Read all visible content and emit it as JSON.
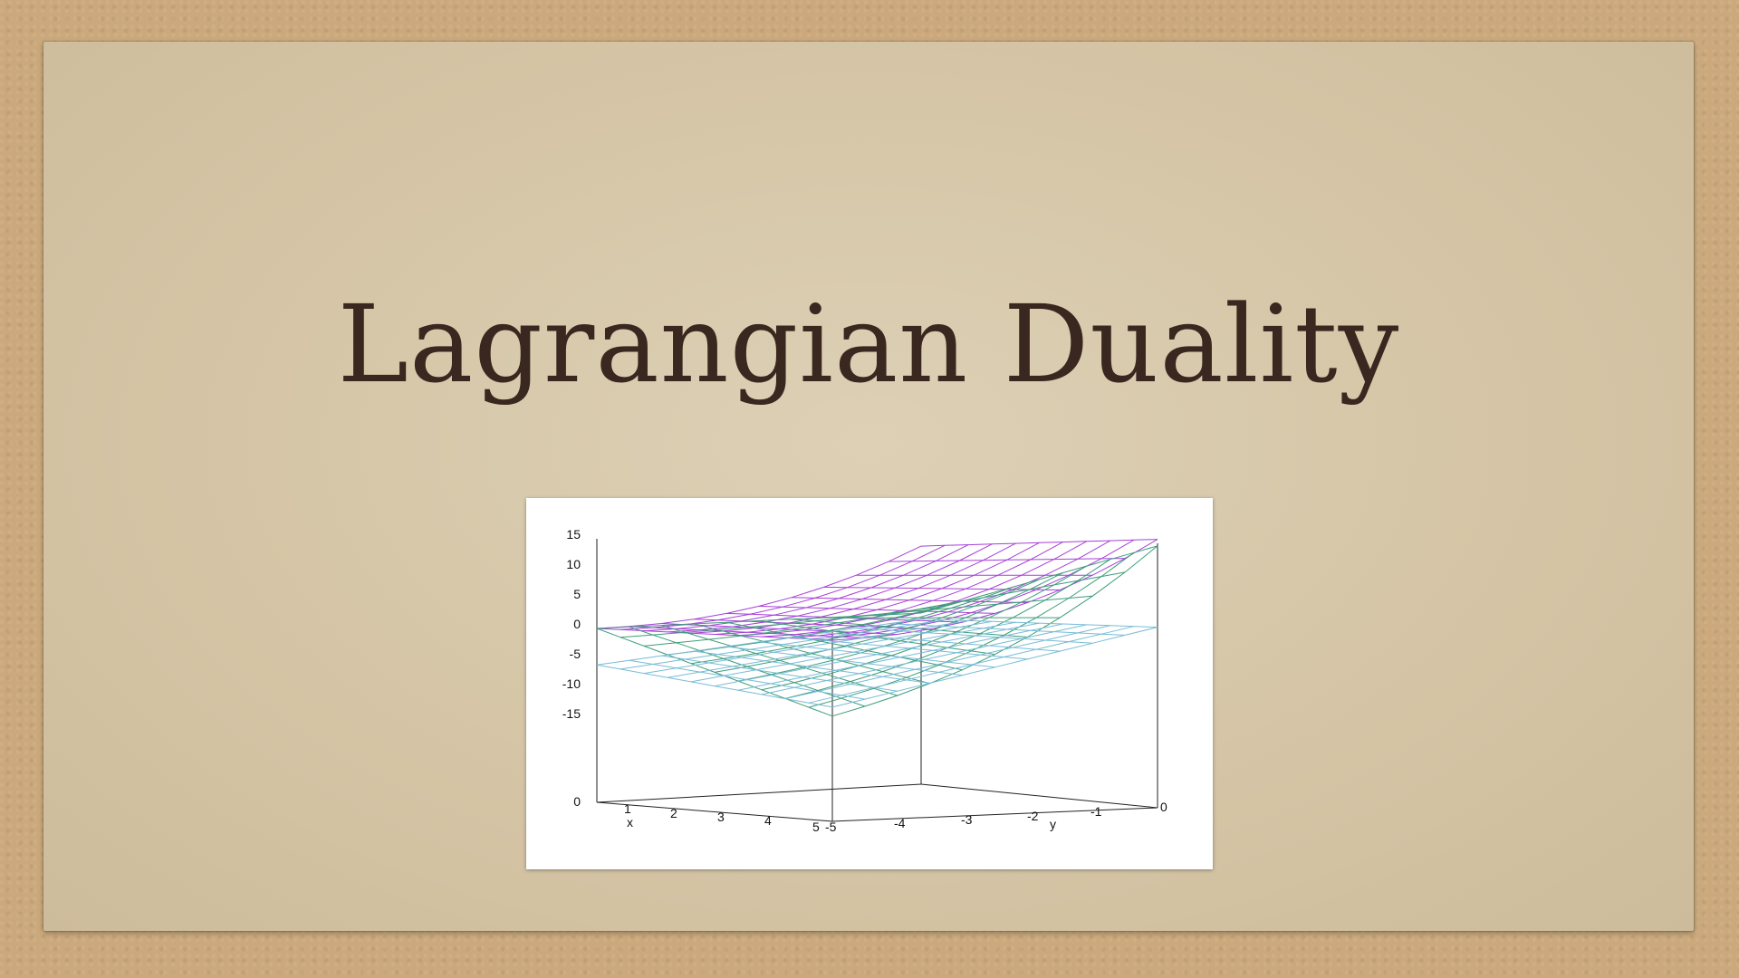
{
  "slide": {
    "title": "Lagrangian Duality"
  },
  "colors": {
    "background": "#cba97c",
    "paper": "#d6c7aa",
    "title_text": "#3a2820",
    "surface_purple": "#a640d8",
    "surface_green": "#3d9e7a",
    "surface_blue": "#79bcd6"
  },
  "figure": {
    "z_ticks": [
      "15",
      "10",
      "5",
      "0",
      "-5",
      "-10",
      "-15"
    ],
    "z_base_label": "0",
    "x_ticks": [
      "1",
      "2",
      "3",
      "4",
      "5"
    ],
    "x_label": "x",
    "y_ticks": [
      "-5",
      "-4",
      "-3",
      "-2",
      "-1",
      "0"
    ],
    "y_label": "y",
    "surfaces": [
      "purple",
      "green",
      "blue"
    ]
  }
}
